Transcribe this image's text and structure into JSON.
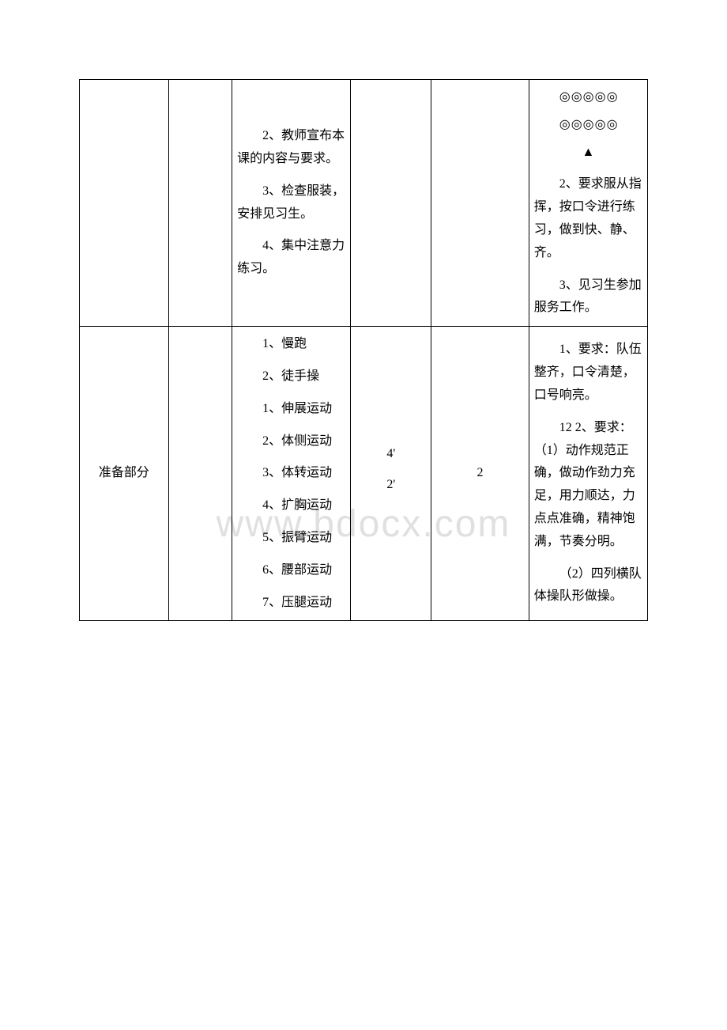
{
  "watermark": "www.bdocx.com",
  "row1": {
    "col3": {
      "p1": "2、教师宣布本课的内容与要求。",
      "p2": "3、检查服装，安排见习生。",
      "p3": "4、集中注意力练习。"
    },
    "col6": {
      "form1": "◎◎◎◎◎",
      "form2": "◎◎◎◎◎",
      "triangle": "▲",
      "p1": "2、要求服从指挥，按口令进行练习，做到快、静、齐。",
      "p2": "3、见习生参加服务工作。"
    }
  },
  "row2": {
    "col1": "准备部分",
    "col3": {
      "p1": "1、慢跑",
      "p2": "2、徒手操",
      "p3": "1、伸展运动",
      "p4": "2、体侧运动",
      "p5": "3、体转运动",
      "p6": "4、扩胸运动",
      "p7": "5、振臂运动",
      "p8": "6、腰部运动",
      "p9": "7、压腿运动"
    },
    "col4": {
      "t1": "4'",
      "t2": "2'"
    },
    "col5": "2",
    "col6": {
      "p1": "1、要求：队伍整齐，口令清楚，口号响亮。",
      "p2": "12 2、要求：（1）动作规范正确，做动作劲力充足，用力顺达，力点点准确，精神饱满，节奏分明。",
      "p3": "（2）四列横队体操队形做操。"
    }
  }
}
